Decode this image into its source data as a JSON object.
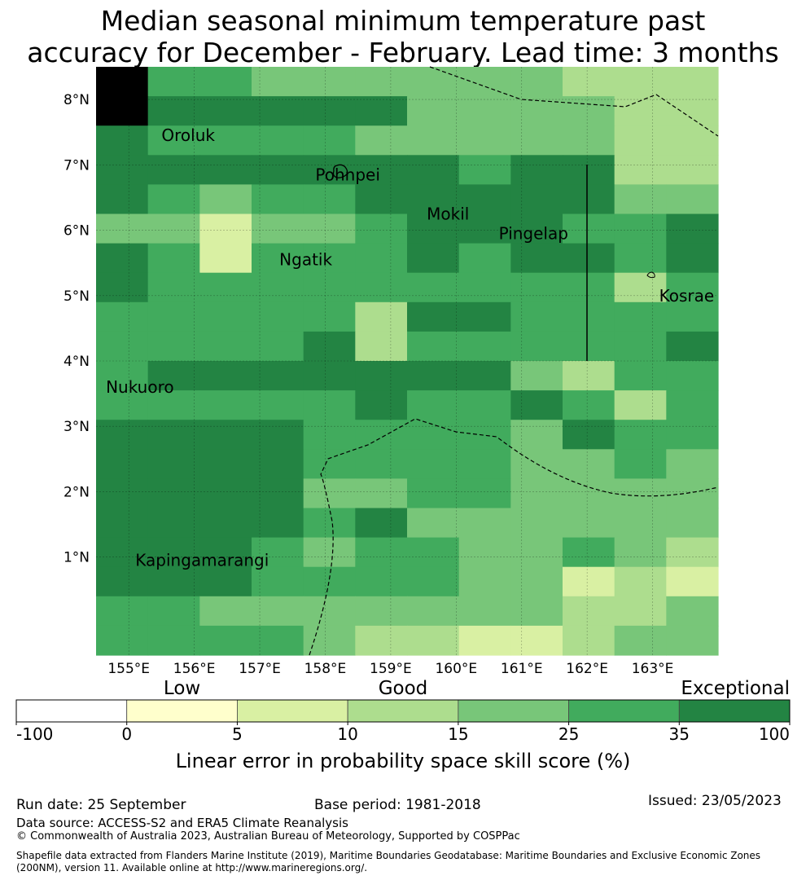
{
  "title_line1": "Median seasonal minimum temperature past",
  "title_line2": "accuracy for December - February. Lead time: 3 months",
  "map": {
    "lon_range": [
      154.5,
      164.0
    ],
    "lat_range": [
      -0.5,
      8.5
    ],
    "lon_ticks": [
      "155°E",
      "156°E",
      "157°E",
      "158°E",
      "159°E",
      "160°E",
      "161°E",
      "162°E",
      "163°E"
    ],
    "lat_ticks": [
      "1°N",
      "2°N",
      "3°N",
      "4°N",
      "5°N",
      "6°N",
      "7°N",
      "8°N"
    ],
    "places": [
      {
        "name": "Oroluk",
        "lon": 155.5,
        "lat": 7.45
      },
      {
        "name": "Pohnpei",
        "lon": 157.85,
        "lat": 6.85
      },
      {
        "name": "Mokil",
        "lon": 159.55,
        "lat": 6.25
      },
      {
        "name": "Pingelap",
        "lon": 160.65,
        "lat": 5.95
      },
      {
        "name": "Ngatik",
        "lon": 157.3,
        "lat": 5.55
      },
      {
        "name": "Kosrae",
        "lon": 163.1,
        "lat": 5.0
      },
      {
        "name": "Nukuoro",
        "lon": 154.65,
        "lat": 3.6
      },
      {
        "name": "Kapingamarangi",
        "lon": 155.1,
        "lat": 0.95
      }
    ],
    "grid_cell_deg": 0.833,
    "skill_grid": [
      [
        5,
        3,
        3,
        2,
        2,
        2,
        2,
        2,
        2,
        1,
        1,
        1
      ],
      [
        5,
        4,
        4,
        4,
        4,
        4,
        2,
        2,
        2,
        2,
        1,
        1
      ],
      [
        4,
        3,
        3,
        3,
        3,
        2,
        2,
        2,
        2,
        2,
        1,
        1
      ],
      [
        4,
        4,
        4,
        4,
        4,
        4,
        4,
        3,
        4,
        4,
        1,
        1
      ],
      [
        4,
        3,
        2,
        3,
        3,
        4,
        4,
        4,
        4,
        4,
        2,
        2
      ],
      [
        2,
        2,
        0,
        2,
        2,
        3,
        4,
        4,
        4,
        3,
        3,
        4
      ],
      [
        4,
        3,
        0,
        3,
        3,
        3,
        4,
        3,
        4,
        4,
        3,
        4
      ],
      [
        4,
        3,
        3,
        3,
        3,
        3,
        3,
        3,
        3,
        3,
        1,
        3
      ],
      [
        3,
        3,
        3,
        3,
        3,
        1,
        4,
        4,
        3,
        3,
        3,
        3
      ],
      [
        3,
        3,
        3,
        3,
        4,
        1,
        3,
        3,
        3,
        3,
        3,
        4
      ],
      [
        3,
        4,
        4,
        4,
        4,
        4,
        4,
        4,
        2,
        1,
        3,
        3
      ],
      [
        3,
        3,
        3,
        3,
        3,
        4,
        3,
        3,
        4,
        3,
        1,
        3
      ],
      [
        4,
        4,
        4,
        4,
        3,
        3,
        3,
        3,
        2,
        4,
        3,
        3
      ],
      [
        4,
        4,
        4,
        4,
        3,
        3,
        3,
        3,
        2,
        2,
        3,
        2
      ],
      [
        4,
        4,
        4,
        4,
        2,
        2,
        3,
        3,
        2,
        2,
        2,
        2
      ],
      [
        4,
        4,
        4,
        4,
        3,
        4,
        2,
        2,
        2,
        2,
        2,
        2
      ],
      [
        4,
        4,
        4,
        3,
        2,
        3,
        3,
        2,
        2,
        3,
        2,
        1
      ],
      [
        4,
        4,
        4,
        3,
        3,
        3,
        3,
        2,
        2,
        0,
        1,
        0
      ],
      [
        3,
        3,
        2,
        2,
        2,
        2,
        2,
        2,
        2,
        1,
        1,
        2
      ],
      [
        3,
        3,
        3,
        3,
        2,
        1,
        1,
        0,
        0,
        1,
        2,
        2
      ]
    ]
  },
  "legend": {
    "category_low": "Low",
    "category_good": "Good",
    "category_exceptional": "Exceptional",
    "ticks": [
      "-100",
      "0",
      "5",
      "10",
      "15",
      "25",
      "35",
      "100"
    ],
    "colors": [
      "#ffffff",
      "#ffffcc",
      "#d9f0a3",
      "#addd8e",
      "#78c679",
      "#41ab5d",
      "#238443"
    ],
    "label": "Linear error in probability space skill score (%)"
  },
  "footer": {
    "run_date": "Run date: 25 September",
    "base_period": "Base period: 1981-2018",
    "issued": "Issued: 23/05/2023",
    "data_source": "Data source: ACCESS-S2 and ERA5 Climate Reanalysis",
    "copyright": "© Commonwealth of Australia 2023, Australian Bureau of Meteorology, Supported by COSPPac",
    "shapefile": "Shapefile data extracted from Flanders Marine Institute (2019), Maritime Boundaries Geodatabase: Maritime Boundaries and Exclusive Economic Zones (200NM), version 11. Available online at http://www.marineregions.org/."
  }
}
